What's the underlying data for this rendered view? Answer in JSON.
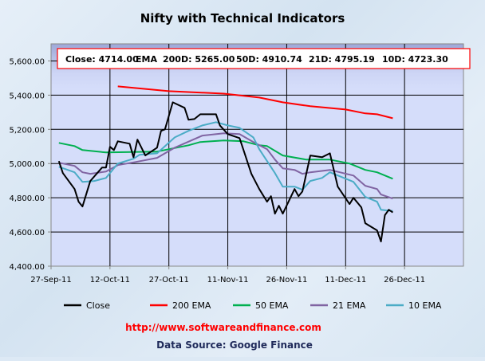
{
  "chart_data": {
    "type": "line",
    "title": "Nifty with Technical Indicators",
    "xlabel": "",
    "ylabel": "",
    "ylim": [
      4400,
      5700
    ],
    "xlim_days": [
      0,
      105
    ],
    "x_ticks": [
      "27-Sep-11",
      "12-Oct-11",
      "27-Oct-11",
      "11-Nov-11",
      "26-Nov-11",
      "11-Dec-11",
      "26-Dec-11"
    ],
    "y_ticks": [
      4400,
      4600,
      4800,
      5000,
      5200,
      5400,
      5600
    ],
    "y_tick_labels": [
      "4,400.00",
      "4,600.00",
      "4,800.00",
      "5,000.00",
      "5,200.00",
      "5,400.00",
      "5,600.00"
    ],
    "grid": true,
    "legend_position": "bottom",
    "x_unit": "days since 27-Sep-11",
    "series": [
      {
        "name": "Close",
        "color": "#000000",
        "x": [
          2,
          3,
          6,
          7,
          8,
          10,
          13,
          14,
          15,
          16,
          17,
          20,
          21,
          22,
          24,
          27,
          28,
          29,
          31,
          34,
          35,
          36.5,
          38,
          42,
          43,
          45,
          48,
          49,
          51,
          53,
          55,
          56,
          57,
          58,
          59,
          62,
          63,
          64,
          66,
          69,
          71,
          73,
          76,
          77,
          79,
          80,
          83,
          84,
          85,
          86,
          87
        ],
        "values": [
          5014,
          4944,
          4851,
          4777,
          4749,
          4898,
          4977,
          4977,
          5098,
          5079,
          5130,
          5116,
          5037,
          5140,
          5047,
          5093,
          5191,
          5200,
          5358,
          5326,
          5256,
          5260,
          5288,
          5288,
          5223,
          5172,
          5149,
          5079,
          4940,
          4851,
          4777,
          4809,
          4707,
          4753,
          4707,
          4851,
          4809,
          4837,
          5047,
          5037,
          5060,
          4865,
          4763,
          4800,
          4744,
          4651,
          4609,
          4544,
          4698,
          4730,
          4714
        ]
      },
      {
        "name": "200 EMA",
        "color": "#ff0000",
        "x": [
          17,
          30,
          44,
          53,
          59,
          66,
          75,
          80,
          83,
          87
        ],
        "values": [
          5451,
          5423,
          5409,
          5386,
          5358,
          5335,
          5316,
          5293,
          5288,
          5265
        ]
      },
      {
        "name": "50 EMA",
        "color": "#00b050",
        "x": [
          2,
          6,
          8,
          14,
          27,
          35,
          38,
          44,
          49,
          53,
          55,
          59,
          65,
          71,
          76,
          80,
          83,
          87
        ],
        "values": [
          5121,
          5102,
          5079,
          5065,
          5070,
          5107,
          5126,
          5135,
          5130,
          5107,
          5102,
          5047,
          5023,
          5023,
          5000,
          4963,
          4949,
          4911
        ]
      },
      {
        "name": "21 EMA",
        "color": "#8064a2",
        "x": [
          2,
          6,
          8,
          10,
          14,
          17,
          21.5,
          27,
          31.5,
          38.5,
          44,
          48,
          51.5,
          55,
          57,
          59,
          62,
          64,
          66,
          71,
          77,
          80,
          83,
          84,
          87
        ],
        "values": [
          5005,
          4986,
          4949,
          4940,
          4953,
          4991,
          5009,
          5033,
          5093,
          5163,
          5177,
          5172,
          5126,
          5084,
          5023,
          4972,
          4963,
          4940,
          4949,
          4963,
          4930,
          4870,
          4851,
          4819,
          4795
        ]
      },
      {
        "name": "10 EMA",
        "color": "#4bacc6",
        "x": [
          2,
          6,
          8,
          11,
          14,
          17,
          21,
          22.5,
          27,
          31.5,
          35,
          38.5,
          42,
          45,
          48,
          51.5,
          53,
          57,
          59,
          62,
          64,
          66,
          69,
          71,
          77,
          80,
          83,
          84,
          87
        ],
        "values": [
          4981,
          4949,
          4893,
          4898,
          4916,
          5000,
          5028,
          5051,
          5060,
          5153,
          5191,
          5223,
          5242,
          5223,
          5209,
          5153,
          5084,
          4944,
          4865,
          4865,
          4847,
          4898,
          4916,
          4949,
          4893,
          4805,
          4777,
          4730,
          4723
        ]
      }
    ],
    "annotation": {
      "close": "Close: 4714.00",
      "ema": "EMA",
      "d200": "200D: 5265.00",
      "d50": "50D: 4910.74",
      "d21": "21D: 4795.19",
      "d10": "10D: 4723.30"
    },
    "footer_url": "http://www.softwareandfinance.com",
    "footer_source": "Data Source: Google Finance"
  }
}
